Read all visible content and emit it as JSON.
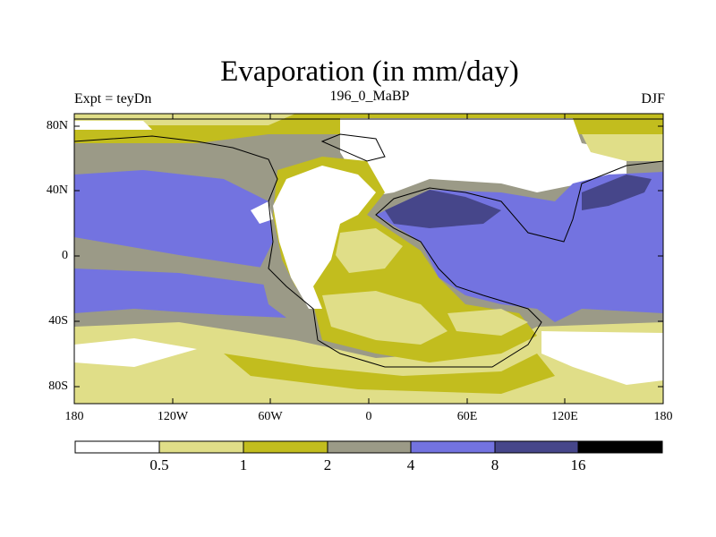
{
  "title": "Evaporation (in mm/day)",
  "left_string": "Expt = teyDn",
  "center_string": "196_0_MaBP",
  "right_string": "DJF",
  "lat_labels": [
    "80N",
    "40N",
    "0",
    "40S",
    "80S"
  ],
  "lon_labels": [
    "180",
    "120W",
    "60W",
    "0",
    "60E",
    "120E",
    "180"
  ],
  "colorbar": {
    "levels": [
      "0.5",
      "1",
      "2",
      "4",
      "8",
      "16"
    ],
    "colors": [
      "#ffffff",
      "#e0de88",
      "#c2bd1e",
      "#9b9a87",
      "#7373e0",
      "#46468a",
      "#000000"
    ]
  }
}
